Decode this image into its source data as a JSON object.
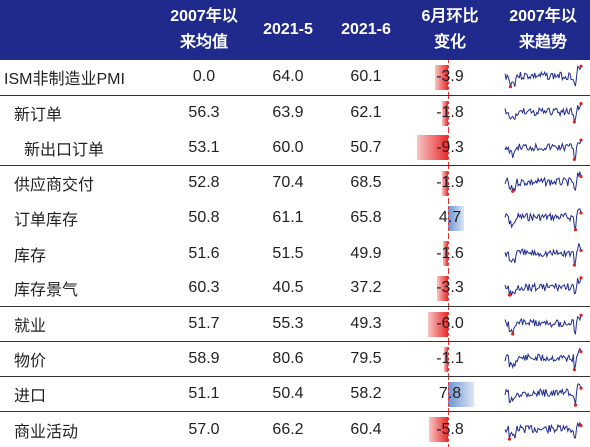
{
  "header": {
    "col_name": "",
    "col_avg": [
      "2007年以",
      "来均值"
    ],
    "col_may": "2021-5",
    "col_jun": "2021-6",
    "col_chg": [
      "6月环比",
      "变化"
    ],
    "col_trend": [
      "2007年以",
      "来趋势"
    ]
  },
  "colors": {
    "header_bg": "#1f2a8c",
    "neg_bar": "#ea2a2a",
    "pos_bar": "#6d93cf",
    "spark": "#1f2a8c",
    "spark_point": "#e02020"
  },
  "chart_data": {
    "type": "table",
    "columns": [
      "",
      "2007年以来均值",
      "2021-5",
      "2021-6",
      "6月环比变化",
      "2007年以来趋势"
    ],
    "rows": [
      {
        "name": "ISM非制造业PMI",
        "avg": "0.0",
        "may": "64.0",
        "jun": "60.1",
        "chg": "-3.9",
        "chg_value": -3.9,
        "level": "top",
        "sep": false
      },
      {
        "name": "新订单",
        "avg": "56.3",
        "may": "63.9",
        "jun": "62.1",
        "chg": "-1.8",
        "chg_value": -1.8,
        "level": "mid",
        "sep": true
      },
      {
        "name": "新出口订单",
        "avg": "53.1",
        "may": "60.0",
        "jun": "50.7",
        "chg": "-9.3",
        "chg_value": -9.3,
        "level": "sub",
        "sep": false
      },
      {
        "name": "供应商交付",
        "avg": "52.8",
        "may": "70.4",
        "jun": "68.5",
        "chg": "-1.9",
        "chg_value": -1.9,
        "level": "mid",
        "sep": true
      },
      {
        "name": "订单库存",
        "avg": "50.8",
        "may": "61.1",
        "jun": "65.8",
        "chg": "4.7",
        "chg_value": 4.7,
        "level": "mid",
        "sep": false
      },
      {
        "name": "库存",
        "avg": "51.6",
        "may": "51.5",
        "jun": "49.9",
        "chg": "-1.6",
        "chg_value": -1.6,
        "level": "mid",
        "sep": false
      },
      {
        "name": "库存景气",
        "avg": "60.3",
        "may": "40.5",
        "jun": "37.2",
        "chg": "-3.3",
        "chg_value": -3.3,
        "level": "mid",
        "sep": false
      },
      {
        "name": "就业",
        "avg": "51.7",
        "may": "55.3",
        "jun": "49.3",
        "chg": "-6.0",
        "chg_value": -6.0,
        "level": "mid",
        "sep": true
      },
      {
        "name": "物价",
        "avg": "58.9",
        "may": "80.6",
        "jun": "79.5",
        "chg": "-1.1",
        "chg_value": -1.1,
        "level": "mid",
        "sep": true
      },
      {
        "name": "进口",
        "avg": "51.1",
        "may": "50.4",
        "jun": "58.2",
        "chg": "7.8",
        "chg_value": 7.8,
        "level": "mid",
        "sep": true
      },
      {
        "name": "商业活动",
        "avg": "57.0",
        "may": "66.2",
        "jun": "60.4",
        "chg": "-5.8",
        "chg_value": -5.8,
        "level": "mid",
        "sep": true
      }
    ]
  }
}
